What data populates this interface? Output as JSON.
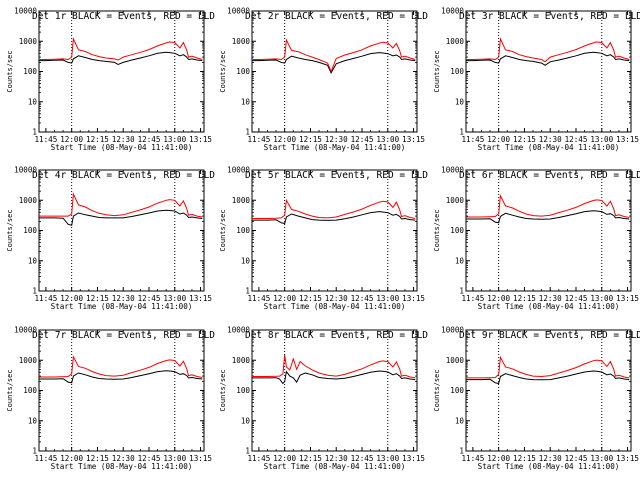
{
  "figure": {
    "xlabel": "Start Time (08-May-04 11:41:00)",
    "ylabel": "Counts/sec",
    "time_ticks": [
      "11:45",
      "12:00",
      "12:15",
      "12:30",
      "12:45",
      "13:00",
      "13:15"
    ],
    "y_ticks": [
      "1",
      "10",
      "100",
      "1000",
      "10000"
    ]
  },
  "chart_data": [
    {
      "type": "line",
      "title": "Det 1r BLACK = Events, RED = LLD",
      "x": [
        "11:41",
        "11:45",
        "11:50",
        "11:55",
        "11:58",
        "12:00",
        "12:01",
        "12:04",
        "12:08",
        "12:12",
        "12:16",
        "12:20",
        "12:25",
        "12:27",
        "12:30",
        "12:35",
        "12:40",
        "12:45",
        "12:50",
        "12:55",
        "12:57",
        "13:00",
        "13:03",
        "13:05",
        "13:07",
        "13:08",
        "13:10",
        "13:13",
        "13:16"
      ],
      "series": [
        {
          "name": "Events",
          "color": "#000000",
          "values": [
            230,
            230,
            235,
            240,
            200,
            190,
            260,
            330,
            290,
            250,
            230,
            215,
            200,
            170,
            200,
            240,
            280,
            330,
            400,
            430,
            420,
            400,
            330,
            360,
            300,
            250,
            260,
            240,
            230
          ]
        },
        {
          "name": "LLD",
          "color": "#ff0000",
          "values": [
            250,
            250,
            255,
            260,
            250,
            300,
            1200,
            520,
            460,
            360,
            310,
            280,
            260,
            240,
            300,
            360,
            430,
            530,
            700,
            880,
            950,
            900,
            600,
            900,
            500,
            300,
            320,
            280,
            250
          ]
        }
      ],
      "vlines": [
        "12:00",
        "13:00"
      ],
      "ylim": [
        1,
        10000
      ],
      "ylog": true
    },
    {
      "type": "line",
      "title": "Det 2r BLACK = Events, RED = LLD",
      "x": [
        "11:41",
        "11:45",
        "11:50",
        "11:55",
        "11:58",
        "12:00",
        "12:01",
        "12:04",
        "12:08",
        "12:12",
        "12:16",
        "12:20",
        "12:25",
        "12:27",
        "12:30",
        "12:35",
        "12:40",
        "12:45",
        "12:50",
        "12:55",
        "12:57",
        "13:00",
        "13:03",
        "13:05",
        "13:07",
        "13:08",
        "13:10",
        "13:13",
        "13:16"
      ],
      "series": [
        {
          "name": "Events",
          "color": "#000000",
          "values": [
            230,
            230,
            235,
            240,
            200,
            190,
            250,
            320,
            280,
            250,
            230,
            200,
            160,
            90,
            180,
            230,
            270,
            320,
            390,
            420,
            410,
            390,
            330,
            350,
            300,
            250,
            260,
            240,
            230
          ]
        },
        {
          "name": "LLD",
          "color": "#ff0000",
          "values": [
            250,
            250,
            255,
            260,
            250,
            300,
            1100,
            500,
            450,
            360,
            300,
            250,
            190,
            100,
            270,
            350,
            420,
            520,
            700,
            860,
            930,
            880,
            600,
            850,
            480,
            300,
            320,
            280,
            250
          ]
        }
      ],
      "vlines": [
        "12:00",
        "13:00"
      ],
      "ylim": [
        1,
        10000
      ],
      "ylog": true
    },
    {
      "type": "line",
      "title": "Det 3r BLACK = Events, RED = LLD",
      "x": [
        "11:41",
        "11:45",
        "11:50",
        "11:55",
        "11:58",
        "12:00",
        "12:01",
        "12:04",
        "12:08",
        "12:12",
        "12:16",
        "12:20",
        "12:25",
        "12:27",
        "12:30",
        "12:35",
        "12:40",
        "12:45",
        "12:50",
        "12:55",
        "12:57",
        "13:00",
        "13:03",
        "13:05",
        "13:07",
        "13:08",
        "13:10",
        "13:13",
        "13:16"
      ],
      "series": [
        {
          "name": "Events",
          "color": "#000000",
          "values": [
            230,
            230,
            235,
            240,
            200,
            190,
            260,
            330,
            290,
            250,
            230,
            215,
            190,
            160,
            210,
            240,
            280,
            330,
            400,
            430,
            420,
            400,
            330,
            360,
            300,
            250,
            260,
            240,
            230
          ]
        },
        {
          "name": "LLD",
          "color": "#ff0000",
          "values": [
            250,
            250,
            255,
            260,
            250,
            300,
            1200,
            520,
            460,
            360,
            310,
            280,
            250,
            210,
            300,
            360,
            430,
            530,
            700,
            880,
            950,
            900,
            600,
            900,
            500,
            300,
            320,
            280,
            250
          ]
        }
      ],
      "vlines": [
        "12:00",
        "13:00"
      ],
      "ylim": [
        1,
        10000
      ],
      "ylog": true
    },
    {
      "type": "line",
      "title": "Det 4r BLACK = Events, RED = LLD",
      "x": [
        "11:41",
        "11:45",
        "11:50",
        "11:55",
        "11:58",
        "12:00",
        "12:01",
        "12:04",
        "12:08",
        "12:12",
        "12:16",
        "12:20",
        "12:25",
        "12:30",
        "12:35",
        "12:40",
        "12:45",
        "12:50",
        "12:55",
        "12:57",
        "13:00",
        "13:03",
        "13:05",
        "13:07",
        "13:08",
        "13:10",
        "13:13",
        "13:16"
      ],
      "series": [
        {
          "name": "Events",
          "color": "#000000",
          "values": [
            260,
            260,
            260,
            255,
            160,
            150,
            300,
            380,
            330,
            300,
            270,
            260,
            260,
            260,
            290,
            330,
            380,
            440,
            470,
            460,
            440,
            350,
            380,
            320,
            270,
            280,
            260,
            250
          ]
        },
        {
          "name": "LLD",
          "color": "#ff0000",
          "values": [
            300,
            300,
            300,
            300,
            300,
            350,
            1600,
            700,
            600,
            450,
            370,
            330,
            310,
            330,
            400,
            480,
            600,
            800,
            1000,
            1050,
            1000,
            650,
            950,
            520,
            320,
            340,
            300,
            280
          ]
        }
      ],
      "vlines": [
        "12:00",
        "13:00"
      ],
      "ylim": [
        1,
        10000
      ],
      "ylog": true
    },
    {
      "type": "line",
      "title": "Det 5r BLACK = Events, RED = LLD",
      "x": [
        "11:41",
        "11:45",
        "11:50",
        "11:55",
        "11:58",
        "12:00",
        "12:01",
        "12:04",
        "12:08",
        "12:12",
        "12:16",
        "12:20",
        "12:25",
        "12:30",
        "12:35",
        "12:40",
        "12:45",
        "12:50",
        "12:55",
        "12:57",
        "13:00",
        "13:03",
        "13:05",
        "13:07",
        "13:08",
        "13:10",
        "13:13",
        "13:16"
      ],
      "series": [
        {
          "name": "Events",
          "color": "#000000",
          "values": [
            220,
            220,
            220,
            225,
            180,
            170,
            280,
            350,
            300,
            260,
            230,
            220,
            215,
            220,
            245,
            280,
            330,
            390,
            420,
            410,
            390,
            320,
            340,
            290,
            240,
            250,
            230,
            220
          ]
        },
        {
          "name": "LLD",
          "color": "#ff0000",
          "values": [
            250,
            250,
            250,
            255,
            260,
            320,
            1000,
            500,
            430,
            350,
            300,
            270,
            260,
            280,
            340,
            410,
            510,
            680,
            860,
            930,
            880,
            580,
            860,
            470,
            290,
            310,
            270,
            250
          ]
        }
      ],
      "vlines": [
        "12:00",
        "13:00"
      ],
      "ylim": [
        1,
        10000
      ],
      "ylog": true
    },
    {
      "type": "line",
      "title": "Det 6r BLACK = Events, RED = LLD",
      "x": [
        "11:41",
        "11:45",
        "11:50",
        "11:55",
        "11:58",
        "12:00",
        "12:01",
        "12:04",
        "12:08",
        "12:12",
        "12:16",
        "12:20",
        "12:25",
        "12:30",
        "12:35",
        "12:40",
        "12:45",
        "12:50",
        "12:55",
        "12:57",
        "13:00",
        "13:03",
        "13:05",
        "13:07",
        "13:08",
        "13:10",
        "13:13",
        "13:16"
      ],
      "series": [
        {
          "name": "Events",
          "color": "#000000",
          "values": [
            240,
            240,
            240,
            245,
            190,
            180,
            290,
            370,
            320,
            280,
            250,
            240,
            235,
            240,
            270,
            310,
            360,
            420,
            450,
            440,
            420,
            340,
            360,
            310,
            260,
            270,
            250,
            240
          ]
        },
        {
          "name": "LLD",
          "color": "#ff0000",
          "values": [
            280,
            280,
            280,
            285,
            290,
            360,
            1400,
            650,
            560,
            430,
            350,
            310,
            300,
            320,
            390,
            470,
            580,
            780,
            980,
            1030,
            980,
            640,
            930,
            510,
            310,
            330,
            290,
            270
          ]
        }
      ],
      "vlines": [
        "12:00",
        "13:00"
      ],
      "ylim": [
        1,
        10000
      ],
      "ylog": true
    },
    {
      "type": "line",
      "title": "Det 7r BLACK = Events, RED = LLD",
      "x": [
        "11:41",
        "11:45",
        "11:50",
        "11:55",
        "11:58",
        "12:00",
        "12:01",
        "12:04",
        "12:08",
        "12:12",
        "12:16",
        "12:20",
        "12:25",
        "12:30",
        "12:35",
        "12:40",
        "12:45",
        "12:50",
        "12:55",
        "12:57",
        "13:00",
        "13:03",
        "13:05",
        "13:07",
        "13:08",
        "13:10",
        "13:13",
        "13:16"
      ],
      "series": [
        {
          "name": "Events",
          "color": "#000000",
          "values": [
            240,
            240,
            240,
            245,
            190,
            180,
            300,
            380,
            330,
            280,
            250,
            240,
            235,
            240,
            270,
            310,
            360,
            420,
            450,
            440,
            420,
            340,
            360,
            310,
            260,
            270,
            250,
            240
          ]
        },
        {
          "name": "LLD",
          "color": "#ff0000",
          "values": [
            280,
            280,
            280,
            285,
            290,
            360,
            1300,
            620,
            540,
            420,
            350,
            310,
            300,
            320,
            390,
            470,
            580,
            780,
            980,
            1030,
            980,
            640,
            930,
            510,
            310,
            330,
            290,
            270
          ]
        }
      ],
      "vlines": [
        "12:00",
        "13:00"
      ],
      "ylim": [
        1,
        10000
      ],
      "ylog": true
    },
    {
      "type": "line",
      "title": "Det 8r BLACK = Events, RED = LLD",
      "x": [
        "11:41",
        "11:45",
        "11:50",
        "11:55",
        "11:57",
        "11:59",
        "12:00",
        "12:01",
        "12:03",
        "12:05",
        "12:07",
        "12:09",
        "12:12",
        "12:16",
        "12:20",
        "12:25",
        "12:30",
        "12:35",
        "12:40",
        "12:45",
        "12:50",
        "12:55",
        "12:57",
        "13:00",
        "13:03",
        "13:05",
        "13:07",
        "13:08",
        "13:10",
        "13:13",
        "13:16"
      ],
      "series": [
        {
          "name": "Events",
          "color": "#000000",
          "values": [
            260,
            260,
            260,
            265,
            240,
            170,
            200,
            420,
            300,
            260,
            190,
            320,
            380,
            330,
            270,
            250,
            240,
            255,
            290,
            340,
            400,
            440,
            430,
            410,
            330,
            360,
            300,
            250,
            260,
            240,
            230
          ]
        },
        {
          "name": "LLD",
          "color": "#ff0000",
          "values": [
            290,
            290,
            290,
            295,
            300,
            350,
            1500,
            600,
            480,
            1100,
            500,
            900,
            650,
            480,
            380,
            320,
            300,
            340,
            420,
            520,
            700,
            900,
            950,
            900,
            600,
            880,
            500,
            300,
            320,
            280,
            260
          ]
        }
      ],
      "vlines": [
        "12:00",
        "13:00"
      ],
      "ylim": [
        1,
        10000
      ],
      "ylog": true
    },
    {
      "type": "line",
      "title": "Det 9r BLACK = Events, RED = LLD",
      "x": [
        "11:41",
        "11:45",
        "11:50",
        "11:55",
        "11:58",
        "12:00",
        "12:01",
        "12:04",
        "12:08",
        "12:12",
        "12:16",
        "12:20",
        "12:25",
        "12:30",
        "12:35",
        "12:40",
        "12:45",
        "12:50",
        "12:55",
        "12:57",
        "13:00",
        "13:03",
        "13:05",
        "13:07",
        "13:08",
        "13:10",
        "13:13",
        "13:16"
      ],
      "series": [
        {
          "name": "Events",
          "color": "#000000",
          "values": [
            230,
            230,
            230,
            235,
            180,
            170,
            290,
            360,
            310,
            270,
            240,
            230,
            225,
            230,
            260,
            300,
            350,
            410,
            440,
            430,
            410,
            330,
            350,
            300,
            250,
            260,
            240,
            230
          ]
        },
        {
          "name": "LLD",
          "color": "#ff0000",
          "values": [
            260,
            260,
            260,
            265,
            270,
            340,
            1250,
            600,
            520,
            410,
            340,
            300,
            290,
            310,
            380,
            460,
            570,
            760,
            960,
            1010,
            960,
            620,
            910,
            500,
            300,
            320,
            280,
            260
          ]
        }
      ],
      "vlines": [
        "12:00",
        "13:00"
      ],
      "ylim": [
        1,
        10000
      ],
      "ylog": true
    }
  ]
}
